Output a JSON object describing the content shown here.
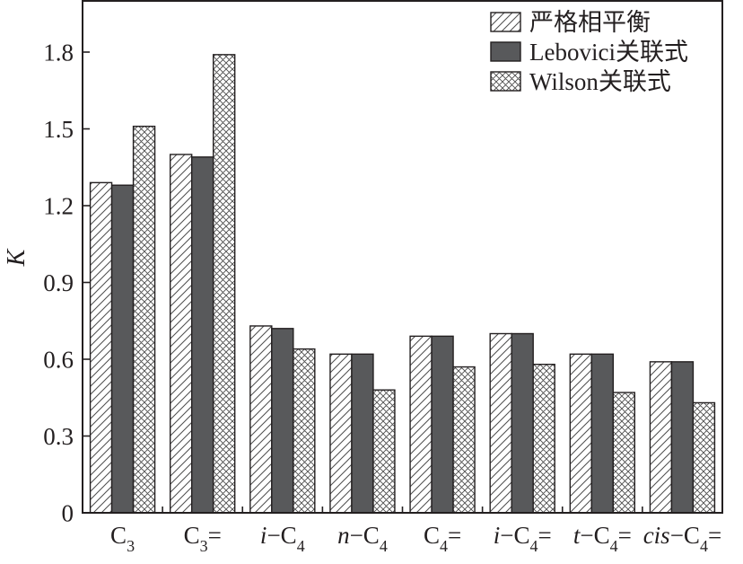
{
  "chart_data": {
    "type": "bar",
    "categories": [
      "C3",
      "C3=",
      "i−C4",
      "n−C4",
      "C4=",
      "i−C4=",
      "t−C4=",
      "cis−C4="
    ],
    "series": [
      {
        "name": "严格相平衡",
        "values": [
          1.29,
          1.4,
          0.73,
          0.62,
          0.69,
          0.7,
          0.62,
          0.59
        ]
      },
      {
        "name": "Lebovici关联式",
        "values": [
          1.28,
          1.39,
          0.72,
          0.62,
          0.69,
          0.7,
          0.62,
          0.59
        ]
      },
      {
        "name": "Wilson关联式",
        "values": [
          1.51,
          1.79,
          0.64,
          0.48,
          0.57,
          0.58,
          0.47,
          0.43
        ]
      }
    ],
    "xlabel": "",
    "ylabel": "K",
    "ylim": [
      0,
      2.0
    ],
    "yticks": [
      0,
      0.3,
      0.6,
      0.9,
      1.2,
      1.5,
      1.8
    ],
    "grid": false,
    "legend": "top-right"
  },
  "colors": {
    "axis": "#231f20",
    "bar_outline": "#231f20",
    "solid_fill": "#58595b",
    "hatch_line": "#4d4d4d",
    "background": "#ffffff"
  }
}
